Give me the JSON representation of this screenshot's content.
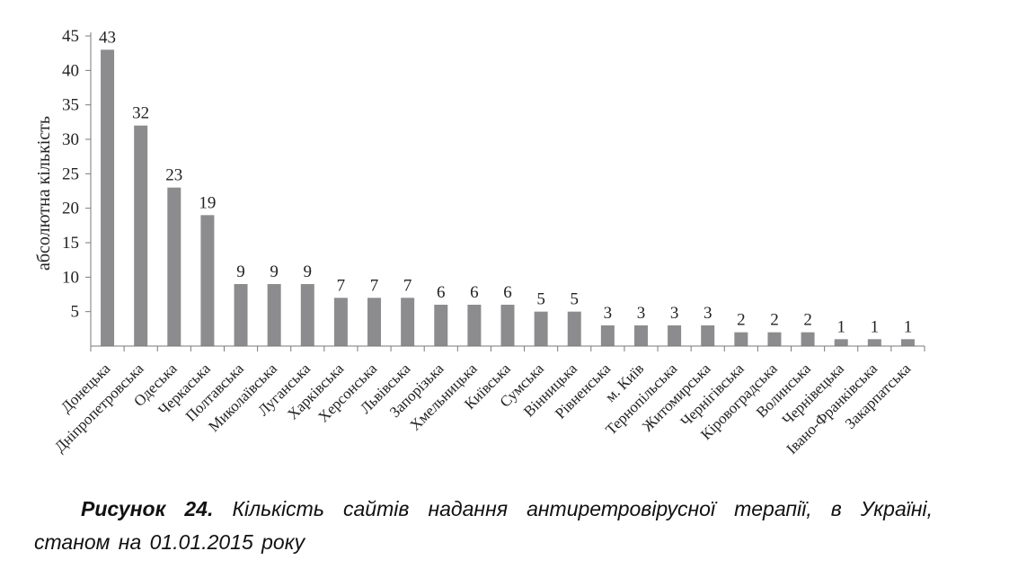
{
  "chart_data": {
    "type": "bar",
    "ylabel": "абсолютна кількість",
    "ylim": [
      0,
      45
    ],
    "yticks": [
      "5",
      "10",
      "15",
      "20",
      "25",
      "30",
      "35",
      "40",
      "45"
    ],
    "grid": false,
    "bar_color": "#8c8c8e",
    "categories": [
      "Донецька",
      "Дніпропетровська",
      "Одеська",
      "Черкаська",
      "Полтавська",
      "Миколаївська",
      "Луганська",
      "Харківська",
      "Херсонська",
      "Львівська",
      "Запорізька",
      "Хмельницька",
      "Київська",
      "Сумська",
      "Вінницька",
      "Рівненська",
      "м. Київ",
      "Тернопільська",
      "Житомирська",
      "Чернігівська",
      "Кіровоградська",
      "Волинська",
      "Чернівецька",
      "Івано-Франківська",
      "Закарпатська"
    ],
    "values": [
      43,
      32,
      23,
      19,
      9,
      9,
      9,
      7,
      7,
      7,
      6,
      6,
      6,
      5,
      5,
      3,
      3,
      3,
      3,
      2,
      2,
      2,
      1,
      1,
      1
    ]
  },
  "caption": {
    "number": "Рисунок 24.",
    "text": "Кількість сайтів надання антиретровірусної терапії, в Україні, станом на 01.01.2015 року"
  }
}
